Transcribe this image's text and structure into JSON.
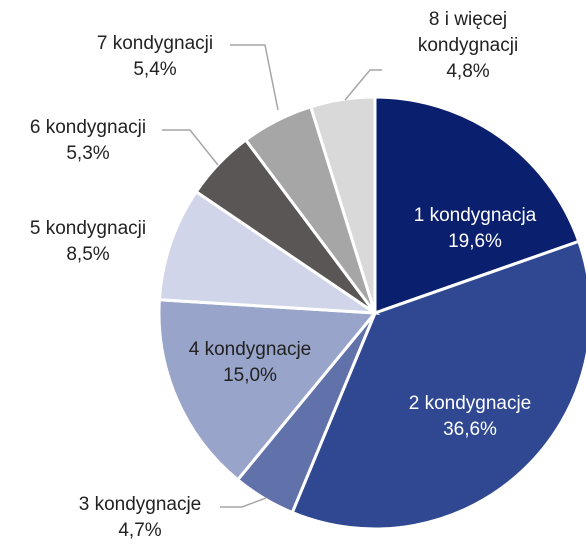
{
  "chart_data": {
    "type": "pie",
    "categories": [
      "1 kondygnacja",
      "2 kondygnacje",
      "3 kondygnacje",
      "4 kondygnacje",
      "5 kondygnacji",
      "6 kondygnacji",
      "7 kondygnacji",
      "8 i więcej kondygnacji"
    ],
    "values": [
      19.6,
      36.6,
      4.7,
      15.0,
      8.5,
      5.3,
      5.4,
      4.8
    ],
    "value_labels": [
      "19,6%",
      "36,6%",
      "4,7%",
      "15,0%",
      "8,5%",
      "5,3%",
      "5,4%",
      "4,8%"
    ],
    "colors": [
      "#0b1f6f",
      "#2f4891",
      "#6171aa",
      "#98a4c9",
      "#d1d5e9",
      "#5a5655",
      "#a6a6a6",
      "#d9d9d9"
    ]
  }
}
